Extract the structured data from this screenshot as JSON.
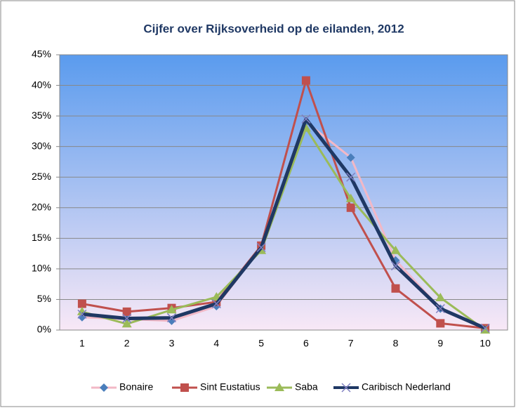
{
  "chart_data": {
    "type": "line",
    "title": "Cijfer over Rijksoverheid op de eilanden, 2012",
    "categories": [
      "1",
      "2",
      "3",
      "4",
      "5",
      "6",
      "7",
      "8",
      "9",
      "10"
    ],
    "ylim": [
      0,
      45
    ],
    "yticks": [
      {
        "value": 0,
        "label": "0%"
      },
      {
        "value": 5,
        "label": "5%"
      },
      {
        "value": 10,
        "label": "10%"
      },
      {
        "value": 15,
        "label": "15%"
      },
      {
        "value": 20,
        "label": "20%"
      },
      {
        "value": 25,
        "label": "25%"
      },
      {
        "value": 30,
        "label": "30%"
      },
      {
        "value": 35,
        "label": "35%"
      },
      {
        "value": 40,
        "label": "40%"
      },
      {
        "value": 45,
        "label": "45%"
      }
    ],
    "grid": true,
    "legend": "bottom",
    "series": [
      {
        "name": "Bonaire",
        "color": "#f2b8c6",
        "marker_color": "#4a7ebb",
        "marker": "diamond",
        "values": [
          2.1,
          1.8,
          1.5,
          3.9,
          13.5,
          34.0,
          28.2,
          11.4,
          3.5,
          0.3
        ]
      },
      {
        "name": "Sint Eustatius",
        "color": "#c0504d",
        "marker_color": "#c0504d",
        "marker": "square",
        "values": [
          4.3,
          3.0,
          3.6,
          4.6,
          13.8,
          40.8,
          20.0,
          6.8,
          1.1,
          0.3
        ]
      },
      {
        "name": "Saba",
        "color": "#9bbb59",
        "marker_color": "#9bbb59",
        "marker": "triangle",
        "values": [
          3.0,
          1.0,
          3.3,
          5.4,
          13.0,
          33.0,
          21.5,
          13.0,
          5.3,
          0.0
        ]
      },
      {
        "name": "Caribisch Nederland",
        "color": "#1f3864",
        "marker_color": "#7f7fc0",
        "marker": "x",
        "values": [
          2.6,
          1.9,
          2.0,
          4.3,
          13.5,
          34.5,
          25.0,
          10.5,
          3.5,
          0.3
        ]
      }
    ]
  }
}
